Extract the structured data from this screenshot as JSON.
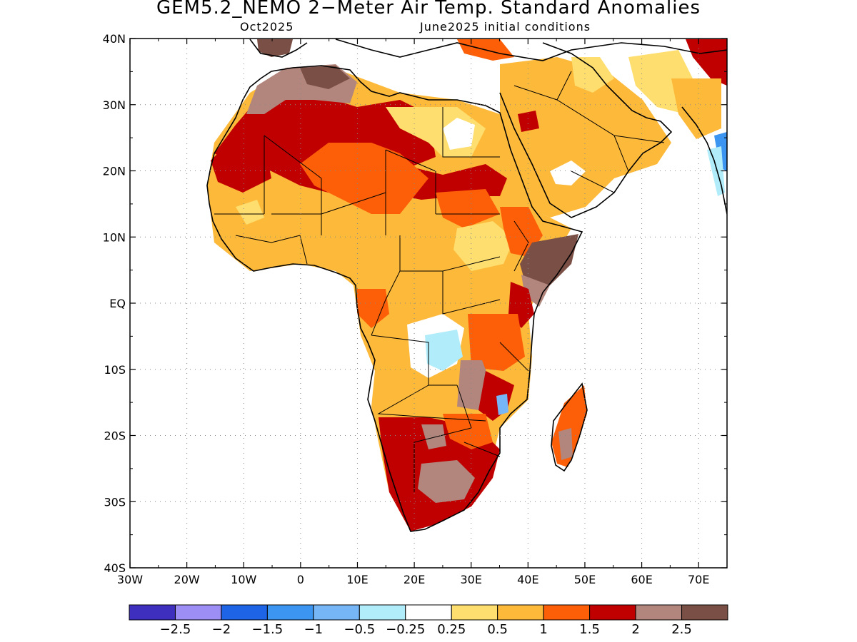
{
  "title": "GEM5.2_NEMO 2−Meter Air Temp. Standard Anomalies",
  "subtitle_left": "Oct2025",
  "subtitle_right": "June2025 initial conditions",
  "chart_data": {
    "type": "heatmap",
    "projection": "lat-lon",
    "xlim": [
      -30,
      75
    ],
    "ylim": [
      -40,
      40
    ],
    "x_ticks": [
      "30W",
      "20W",
      "10W",
      "0",
      "10E",
      "20E",
      "30E",
      "40E",
      "50E",
      "60E",
      "70E"
    ],
    "y_ticks": [
      "40N",
      "30N",
      "20N",
      "10N",
      "EQ",
      "10S",
      "20S",
      "30S",
      "40S"
    ],
    "grid": true,
    "colorbar": {
      "colors": [
        "#3f2fbf",
        "#9d8ef5",
        "#1e64e6",
        "#3c95f0",
        "#76b6f7",
        "#b0ecfa",
        "#ffffff",
        "#fede6e",
        "#fdb93a",
        "#fd5f09",
        "#c00000",
        "#b2867c",
        "#7a4f45"
      ],
      "labels": [
        "−2.5",
        "−2",
        "−1.5",
        "−1",
        "−0.5",
        "−0.25",
        "0.25",
        "0.5",
        "1",
        "1.5",
        "2",
        "2.5"
      ]
    },
    "regions": [
      {
        "name": "north-sahara-anomaly",
        "level": 2,
        "value": 2,
        "color": "#c00000"
      },
      {
        "name": "libya-egypt-anomaly",
        "level": 1,
        "value": 0.5,
        "color": "#fdb93a"
      },
      {
        "name": "arabia-anomaly",
        "level": 1,
        "value": 0.5,
        "color": "#fdb93a"
      },
      {
        "name": "sahel-anomaly",
        "level": 1,
        "value": 0.5,
        "color": "#fdb93a"
      },
      {
        "name": "horn-of-africa-anomaly",
        "level": 3,
        "value": 2.5,
        "color": "#7a4f45"
      },
      {
        "name": "congo-angola-anomaly",
        "level": 1,
        "value": 0.5,
        "color": "#fdb93a"
      },
      {
        "name": "southern-africa-anomaly",
        "level": 2,
        "value": 2,
        "color": "#c00000"
      },
      {
        "name": "madagascar-anomaly",
        "level": 2,
        "value": 1.5,
        "color": "#fd5f09"
      },
      {
        "name": "west-india-cool-anomaly",
        "level": -1,
        "value": -1,
        "color": "#3c95f0"
      }
    ]
  }
}
